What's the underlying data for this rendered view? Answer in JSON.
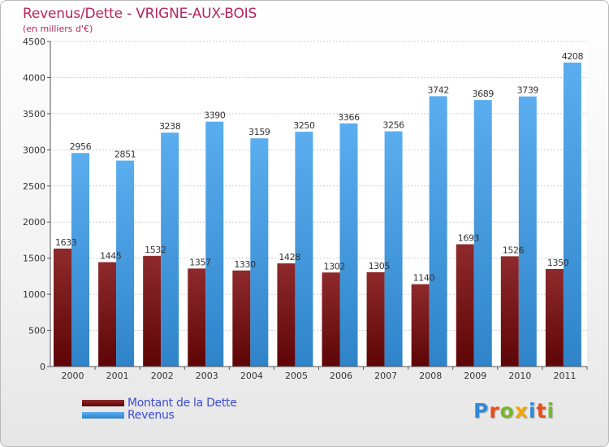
{
  "title": "Revenus/Dette - VRIGNE-AUX-BOIS",
  "subtitle": "(en milliers d'€)",
  "colors": {
    "title": "#b5255b",
    "dette": "#7a0f10",
    "revenus": "#3a94e0",
    "legend_text": "#3b4bd6"
  },
  "logo": {
    "text": "Proxiti",
    "colors": [
      "#2e8ad8",
      "#e84e1b",
      "#78b72a",
      "#f0a800",
      "#2e8ad8",
      "#e84e1b",
      "#78b72a"
    ]
  },
  "chart_data": {
    "type": "bar",
    "categories": [
      "2000",
      "2001",
      "2002",
      "2003",
      "2004",
      "2005",
      "2006",
      "2007",
      "2008",
      "2009",
      "2010",
      "2011"
    ],
    "series": [
      {
        "name": "Montant de la Dette",
        "values": [
          1633,
          1445,
          1532,
          1357,
          1330,
          1428,
          1302,
          1305,
          1140,
          1693,
          1526,
          1350
        ],
        "labels": [
          "1633",
          "1445",
          "1532",
          "1357",
          "1330",
          "1428",
          "1302",
          "1305",
          "1140",
          "1693",
          "1526",
          "1350"
        ]
      },
      {
        "name": "Revenus",
        "values": [
          2956,
          2851,
          3238,
          3390,
          3159,
          3250,
          3366,
          3256,
          3742,
          3689,
          3739,
          4208
        ],
        "labels": [
          "2956",
          "2851",
          "3238",
          "3390",
          "3159",
          "3250",
          "3366",
          "3256",
          "3742",
          "3689",
          "3739",
          "4208"
        ]
      }
    ],
    "ylim": [
      0,
      4500
    ],
    "yticks": [
      0,
      500,
      1000,
      1500,
      2000,
      2500,
      3000,
      3500,
      4000,
      4500
    ],
    "grid": true,
    "legend_position": "bottom-left"
  }
}
